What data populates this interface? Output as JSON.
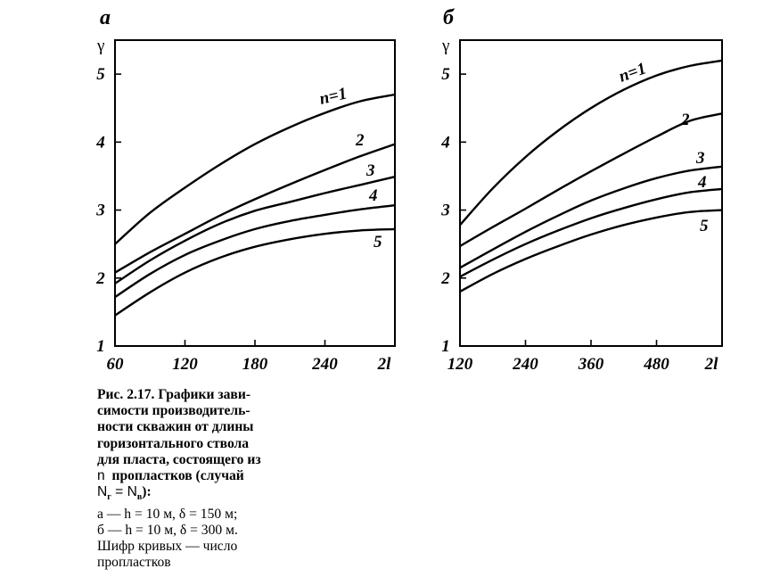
{
  "caption": {
    "title_line1": "Рис. 2.17. Графики зави-",
    "title_line2": "симости производитель-",
    "title_line3": "ности скважин от длины",
    "title_line4": "горизонтального ствола",
    "title_line5": "для пласта, состоящего из",
    "title_n": "n",
    "title_line6_rest": "пропластков (случай",
    "title_N1": "N",
    "title_sub1": "г",
    "title_eq": " = ",
    "title_N2": "N",
    "title_sub2": "в",
    "title_end": "):",
    "note_a": "а — h = 10 м, δ = 150 м;",
    "note_b": "б — h = 10 м, δ = 300 м.",
    "note_c": "Шифр кривых — число",
    "note_d": "пропластков"
  },
  "chart_data": [
    {
      "type": "line",
      "panel": "а",
      "ylabel": "γ",
      "x_end_label": "2l",
      "xlim": [
        60,
        300
      ],
      "ylim": [
        1,
        5.5
      ],
      "x_ticks": [
        60,
        120,
        180,
        240
      ],
      "y_ticks": [
        1,
        2,
        3,
        4,
        5
      ],
      "x_tick_labels": [
        "60",
        "120",
        "180",
        "240"
      ],
      "y_tick_labels": [
        "1",
        "2",
        "3",
        "4",
        "5"
      ],
      "series": [
        {
          "name": "n=1",
          "label": "n=1",
          "x": [
            60,
            90,
            120,
            150,
            180,
            210,
            240,
            270,
            300
          ],
          "y": [
            2.5,
            2.96,
            3.33,
            3.67,
            3.97,
            4.22,
            4.43,
            4.6,
            4.7
          ]
        },
        {
          "name": "2",
          "label": "2",
          "x": [
            60,
            90,
            120,
            150,
            180,
            210,
            240,
            270,
            300
          ],
          "y": [
            2.08,
            2.38,
            2.65,
            2.92,
            3.16,
            3.38,
            3.59,
            3.79,
            3.97
          ]
        },
        {
          "name": "3",
          "label": "3",
          "x": [
            60,
            90,
            120,
            150,
            180,
            210,
            240,
            270,
            300
          ],
          "y": [
            1.92,
            2.26,
            2.55,
            2.8,
            2.99,
            3.12,
            3.25,
            3.37,
            3.49
          ]
        },
        {
          "name": "4",
          "label": "4",
          "x": [
            60,
            90,
            120,
            150,
            180,
            210,
            240,
            270,
            300
          ],
          "y": [
            1.72,
            2.06,
            2.34,
            2.55,
            2.72,
            2.84,
            2.93,
            3.01,
            3.07
          ]
        },
        {
          "name": "5",
          "label": "5",
          "x": [
            60,
            90,
            120,
            150,
            180,
            210,
            240,
            270,
            300
          ],
          "y": [
            1.45,
            1.79,
            2.08,
            2.3,
            2.46,
            2.57,
            2.65,
            2.7,
            2.72
          ]
        }
      ]
    },
    {
      "type": "line",
      "panel": "б",
      "ylabel": "γ",
      "x_end_label": "2l",
      "xlim": [
        120,
        600
      ],
      "ylim": [
        1,
        5.5
      ],
      "x_ticks": [
        120,
        240,
        360,
        480
      ],
      "y_ticks": [
        1,
        2,
        3,
        4,
        5
      ],
      "x_tick_labels": [
        "120",
        "240",
        "360",
        "480"
      ],
      "y_tick_labels": [
        "1",
        "2",
        "3",
        "4",
        "5"
      ],
      "series": [
        {
          "name": "n=1",
          "label": "n=1",
          "x": [
            120,
            180,
            240,
            300,
            360,
            420,
            480,
            540,
            600
          ],
          "y": [
            2.78,
            3.32,
            3.78,
            4.17,
            4.5,
            4.77,
            4.98,
            5.12,
            5.2
          ]
        },
        {
          "name": "2",
          "label": "2",
          "x": [
            120,
            180,
            240,
            300,
            360,
            420,
            480,
            540,
            600
          ],
          "y": [
            2.47,
            2.75,
            3.02,
            3.3,
            3.57,
            3.83,
            4.08,
            4.31,
            4.42
          ]
        },
        {
          "name": "3",
          "label": "3",
          "x": [
            120,
            180,
            240,
            300,
            360,
            420,
            480,
            540,
            600
          ],
          "y": [
            2.15,
            2.42,
            2.68,
            2.92,
            3.14,
            3.32,
            3.47,
            3.58,
            3.64
          ]
        },
        {
          "name": "4",
          "label": "4",
          "x": [
            120,
            180,
            240,
            300,
            360,
            420,
            480,
            540,
            600
          ],
          "y": [
            2.02,
            2.27,
            2.5,
            2.7,
            2.88,
            3.03,
            3.16,
            3.26,
            3.31
          ]
        },
        {
          "name": "5",
          "label": "5",
          "x": [
            120,
            180,
            240,
            300,
            360,
            420,
            480,
            540,
            600
          ],
          "y": [
            1.8,
            2.06,
            2.28,
            2.47,
            2.64,
            2.78,
            2.89,
            2.97,
            3.0
          ]
        }
      ]
    }
  ]
}
